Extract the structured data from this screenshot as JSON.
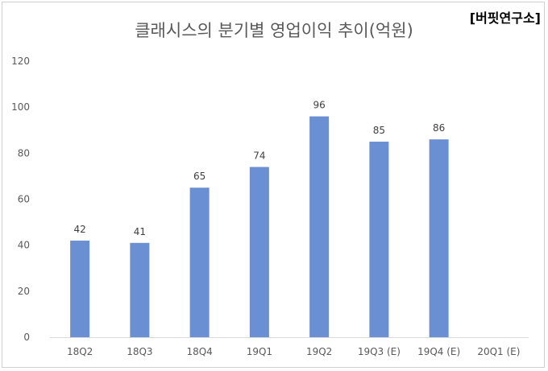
{
  "source_tag": "[버핏연구소]",
  "chart_data": {
    "type": "bar",
    "title": "클래시스의 분기별 영업이익 추이(억원)",
    "categories": [
      "18Q2",
      "18Q3",
      "18Q4",
      "19Q1",
      "19Q2",
      "19Q3 (E)",
      "19Q4 (E)",
      "20Q1 (E)"
    ],
    "values": [
      42,
      41,
      65,
      74,
      96,
      85,
      86,
      null
    ],
    "ylim": [
      0,
      120
    ],
    "yticks": [
      0,
      20,
      40,
      60,
      80,
      100,
      120
    ],
    "grid": false,
    "legend": "none",
    "bar_color": "#6a8fd3",
    "axis_color": "#d9d9d9"
  }
}
